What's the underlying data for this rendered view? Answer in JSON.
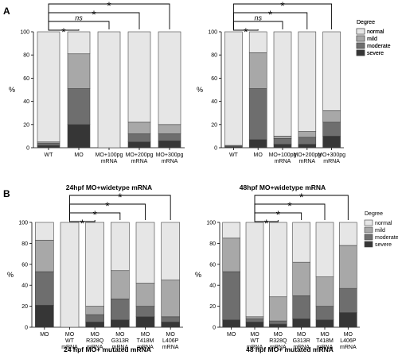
{
  "legend_title": "Degree",
  "legend_items": [
    {
      "label": "normal",
      "color": "#e6e6e6"
    },
    {
      "label": "mild",
      "color": "#a8a8a8"
    },
    {
      "label": "moderate",
      "color": "#6e6e6e"
    },
    {
      "label": "severe",
      "color": "#363636"
    }
  ],
  "chart_data": [
    {
      "type": "bar",
      "stacked": true,
      "panel_label": "A",
      "xlabel": "24hpf MO+widetype mRNA",
      "ylabel": "%",
      "ylim": [
        0,
        100
      ],
      "yticks": [
        0,
        20,
        40,
        60,
        80,
        100
      ],
      "categories": [
        "WT",
        "MO",
        "MO+100pg mRNA",
        "MO+200pg mRNA",
        "MO+300pg mRNA"
      ],
      "series": [
        {
          "name": "severe",
          "values": [
            2,
            20,
            0,
            5,
            6
          ]
        },
        {
          "name": "moderate",
          "values": [
            2,
            31,
            0,
            7,
            6
          ]
        },
        {
          "name": "mild",
          "values": [
            1,
            30,
            0,
            10,
            8
          ]
        },
        {
          "name": "normal",
          "values": [
            95,
            19,
            100,
            78,
            80
          ]
        }
      ],
      "significance": [
        {
          "from": 0,
          "to": 1,
          "label": "*"
        },
        {
          "from": 0,
          "to": 2,
          "label": "ns"
        },
        {
          "from": 0,
          "to": 3,
          "label": "*"
        },
        {
          "from": 0,
          "to": 4,
          "label": "*"
        }
      ],
      "legend": "right"
    },
    {
      "type": "bar",
      "stacked": true,
      "xlabel": "48hpf MO+widetype mRNA",
      "ylabel": "%",
      "ylim": [
        0,
        100
      ],
      "yticks": [
        0,
        20,
        40,
        60,
        80,
        100
      ],
      "categories": [
        "WT",
        "MO",
        "MO+100pg mRNA",
        "MO+200pg mRNA",
        "MO+300pg mRNA"
      ],
      "series": [
        {
          "name": "severe",
          "values": [
            1,
            7,
            3,
            3,
            10
          ]
        },
        {
          "name": "moderate",
          "values": [
            1,
            44,
            5,
            6,
            12
          ]
        },
        {
          "name": "mild",
          "values": [
            0,
            31,
            2,
            5,
            10
          ]
        },
        {
          "name": "normal",
          "values": [
            98,
            18,
            90,
            86,
            68
          ]
        }
      ],
      "significance": [
        {
          "from": 0,
          "to": 1,
          "label": "*"
        },
        {
          "from": 0,
          "to": 2,
          "label": "ns"
        },
        {
          "from": 0,
          "to": 3,
          "label": "*"
        },
        {
          "from": 0,
          "to": 4,
          "label": "*"
        }
      ],
      "legend": "right"
    },
    {
      "type": "bar",
      "stacked": true,
      "panel_label": "B",
      "xlabel": "24 hpf MO+ mutated mRNA",
      "ylabel": "%",
      "ylim": [
        0,
        100
      ],
      "yticks": [
        0,
        20,
        40,
        60,
        80,
        100
      ],
      "categories": [
        "MO",
        "MO WT mRNA",
        "MO R328Q mRNA",
        "MO G313R mRNA",
        "MO T418M mRNA",
        "MO L406P mRNA"
      ],
      "series": [
        {
          "name": "severe",
          "values": [
            21,
            0,
            5,
            7,
            10,
            5
          ]
        },
        {
          "name": "moderate",
          "values": [
            32,
            0,
            7,
            20,
            10,
            5
          ]
        },
        {
          "name": "mild",
          "values": [
            30,
            0,
            8,
            27,
            22,
            35
          ]
        },
        {
          "name": "normal",
          "values": [
            17,
            100,
            80,
            46,
            58,
            55
          ]
        }
      ],
      "significance": [
        {
          "from": 1,
          "to": 2,
          "label": "*"
        },
        {
          "from": 1,
          "to": 3,
          "label": "*"
        },
        {
          "from": 1,
          "to": 4,
          "label": "*"
        },
        {
          "from": 1,
          "to": 5,
          "label": "*"
        }
      ],
      "legend": "none"
    },
    {
      "type": "bar",
      "stacked": true,
      "xlabel": "48 hpf MO+ mutated mRNA",
      "ylabel": "%",
      "ylim": [
        0,
        100
      ],
      "yticks": [
        0,
        20,
        40,
        60,
        80,
        100
      ],
      "categories": [
        "MO",
        "MO WT mRNA",
        "MO R328Q mRNA",
        "MO G313R mRNA",
        "MO T418M mRNA",
        "MO L406P mRNA"
      ],
      "series": [
        {
          "name": "severe",
          "values": [
            7,
            5,
            3,
            8,
            7,
            14
          ]
        },
        {
          "name": "moderate",
          "values": [
            46,
            3,
            3,
            22,
            13,
            23
          ]
        },
        {
          "name": "mild",
          "values": [
            32,
            2,
            23,
            32,
            28,
            41
          ]
        },
        {
          "name": "normal",
          "values": [
            15,
            90,
            71,
            38,
            52,
            22
          ]
        }
      ],
      "significance": [
        {
          "from": 1,
          "to": 2,
          "label": "*"
        },
        {
          "from": 1,
          "to": 3,
          "label": "*"
        },
        {
          "from": 1,
          "to": 4,
          "label": "*"
        },
        {
          "from": 1,
          "to": 5,
          "label": "*"
        }
      ],
      "legend": "right"
    }
  ]
}
